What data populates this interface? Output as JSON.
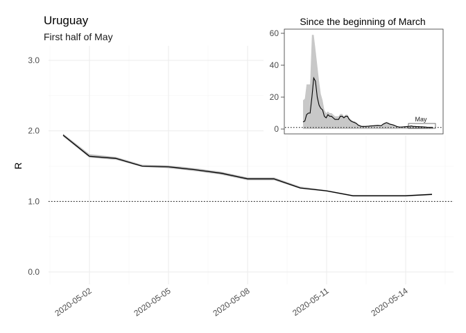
{
  "chart_data": [
    {
      "type": "line",
      "title": "Uruguay",
      "subtitle": "First half of May",
      "xlabel": "",
      "ylabel": "R",
      "x_ticks": [
        "2020-05-02",
        "2020-05-05",
        "2020-05-08",
        "2020-05-11",
        "2020-05-14"
      ],
      "x_tick_values": [
        2,
        5,
        8,
        11,
        14
      ],
      "y_ticks": [
        "0.0",
        "1.0",
        "2.0",
        "3.0"
      ],
      "y_tick_values": [
        0,
        1,
        2,
        3
      ],
      "xlim": [
        "2020-04-30",
        "2020-05-15"
      ],
      "ylim": [
        0,
        3
      ],
      "reference_line": 1.0,
      "grid": true,
      "x": [
        1,
        2,
        3,
        4,
        5,
        6,
        7,
        8,
        9,
        10,
        11,
        12,
        13,
        14,
        15
      ],
      "series": [
        {
          "values": [
            1.94,
            1.64,
            1.61,
            1.5,
            1.49,
            1.45,
            1.4,
            1.32,
            1.32,
            1.19,
            1.15,
            1.08,
            1.08,
            1.08,
            1.1
          ],
          "lower": [
            1.92,
            1.62,
            1.59,
            1.49,
            1.47,
            1.43,
            1.38,
            1.3,
            1.3,
            1.18,
            1.14,
            1.07,
            1.07,
            1.07,
            1.09
          ],
          "upper": [
            1.96,
            1.67,
            1.63,
            1.52,
            1.51,
            1.47,
            1.42,
            1.34,
            1.34,
            1.21,
            1.16,
            1.09,
            1.09,
            1.09,
            1.11
          ]
        }
      ]
    },
    {
      "type": "line",
      "title": "Since the beginning of March",
      "y_ticks": [
        "0",
        "20",
        "40",
        "60"
      ],
      "y_tick_values": [
        0,
        20,
        40,
        60
      ],
      "ylim": [
        -3,
        62
      ],
      "reference_line": 1.0,
      "annotation": "May",
      "x": [
        0,
        1,
        2,
        3,
        4,
        5,
        6,
        7,
        8,
        9,
        10,
        11,
        12,
        13,
        14,
        15,
        16,
        17,
        18,
        19,
        20,
        21,
        22,
        23,
        24,
        25,
        26,
        27,
        28,
        29,
        30,
        31,
        32,
        33,
        34,
        35,
        36,
        37,
        38,
        39,
        40,
        41,
        42,
        43,
        44,
        45,
        46,
        47,
        48,
        49,
        50,
        51,
        52,
        53,
        54,
        55,
        56,
        57,
        58,
        59,
        60,
        61,
        62,
        63,
        64,
        65,
        66,
        67,
        68,
        69,
        70,
        71,
        72,
        73
      ],
      "series": [
        {
          "values": [
            4.5,
            5,
            9,
            10,
            10,
            20,
            32,
            30,
            20,
            15,
            13,
            12,
            8,
            7,
            9,
            8,
            8,
            7,
            6,
            6,
            6,
            8,
            8,
            7,
            8,
            8,
            6,
            5,
            4.5,
            4,
            3.5,
            2.5,
            2,
            1.6,
            1.6,
            1.6,
            1.7,
            1.8,
            1.9,
            2,
            2.1,
            2.2,
            2.3,
            2.2,
            2.1,
            3,
            3.5,
            4,
            3.5,
            3,
            2.8,
            2.5,
            2,
            1.5,
            1.3,
            1.2,
            1.3,
            1.4,
            1.5,
            1.6,
            1.7,
            1.9,
            1.6,
            1.6,
            1.5,
            1.5,
            1.4,
            1.4,
            1.3,
            1.2,
            1.1,
            1.1,
            1.1,
            1.1
          ],
          "lower": [
            0,
            0,
            0,
            0,
            0,
            0,
            0,
            0,
            0,
            0,
            0,
            0,
            0,
            0,
            0,
            0,
            0,
            0,
            0,
            0,
            0,
            0,
            0,
            0,
            0,
            0,
            0,
            0,
            0,
            0,
            0,
            0,
            0,
            0,
            0,
            0,
            0,
            0,
            0,
            0,
            0,
            0,
            0,
            0,
            0,
            0,
            0,
            0,
            0,
            0,
            0,
            0,
            0,
            0,
            0,
            0,
            0,
            0,
            0,
            0,
            0,
            0,
            0,
            0,
            0,
            0,
            0,
            0,
            0,
            0,
            0,
            0,
            0,
            0
          ],
          "upper": [
            18,
            19,
            28,
            28,
            28,
            59,
            59,
            50,
            40,
            30,
            22,
            18,
            12,
            10,
            11,
            10,
            10,
            9,
            8,
            8,
            8,
            9.5,
            9.5,
            8,
            9,
            9,
            7,
            6,
            5,
            5,
            4,
            3,
            2.5,
            2,
            2,
            2,
            2,
            2.2,
            2.3,
            2.3,
            2.5,
            2.5,
            2.6,
            2.5,
            2.4,
            3.4,
            4,
            4.5,
            4,
            3.4,
            3.2,
            2.8,
            2.3,
            1.8,
            1.6,
            1.5,
            1.6,
            1.7,
            1.8,
            1.9,
            2,
            2.2,
            1.9,
            1.9,
            1.8,
            1.8,
            1.7,
            1.7,
            1.6,
            1.5,
            1.4,
            1.4,
            1.4,
            1.4
          ]
        }
      ]
    }
  ],
  "colors": {
    "line": "#000000",
    "ribbon": "#bdbdbd",
    "grid": "#ebebeb",
    "axis_text": "#4d4d4d"
  }
}
